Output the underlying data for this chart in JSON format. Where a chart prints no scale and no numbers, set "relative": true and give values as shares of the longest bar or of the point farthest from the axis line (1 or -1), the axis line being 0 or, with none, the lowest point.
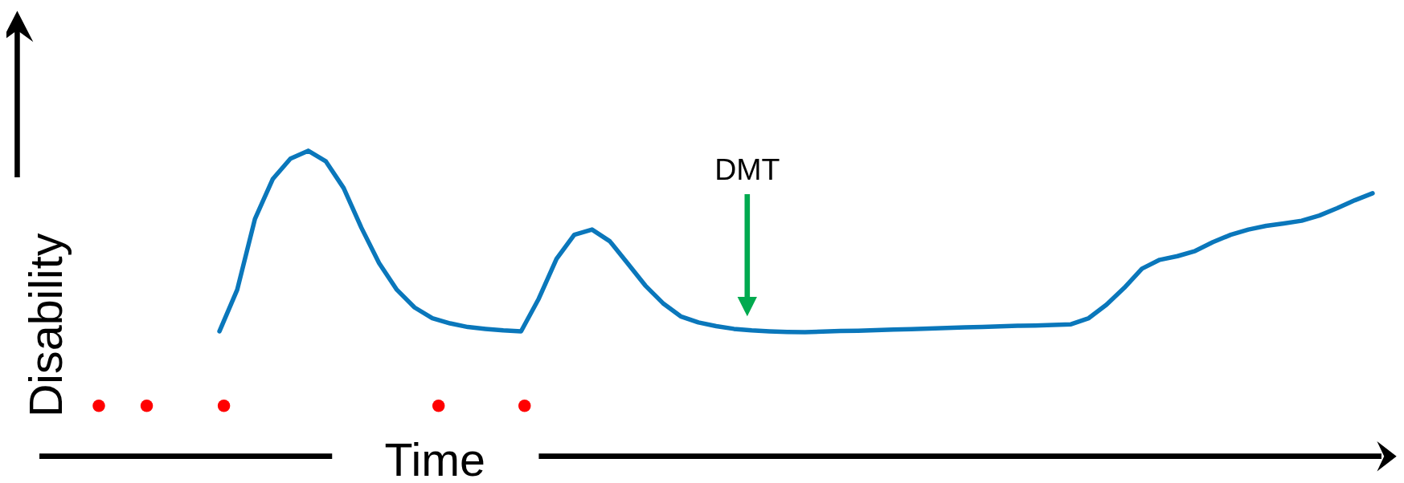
{
  "chart_data": {
    "type": "line",
    "relative": true,
    "xlabel": "Time",
    "ylabel": "Disability",
    "annotations": [
      "DMT"
    ],
    "categories": [
      null,
      null,
      null,
      null,
      null,
      null,
      null,
      null,
      null,
      null,
      null,
      null,
      null,
      null,
      null,
      null,
      null,
      null,
      null,
      null,
      null,
      null,
      null,
      null,
      null,
      null,
      null,
      null,
      null,
      null,
      null,
      null,
      null,
      null,
      null,
      null,
      null,
      null,
      null,
      null,
      null,
      null,
      null,
      null,
      null,
      null,
      null,
      null,
      null,
      null,
      null,
      null,
      null,
      null,
      null,
      null,
      null,
      null,
      null,
      null,
      null,
      null,
      null,
      null,
      null,
      null,
      null,
      null,
      null,
      null,
      null,
      null,
      null,
      null
    ],
    "series": [
      {
        "color": "#0a77bb",
        "values": [
          null,
          null,
          null,
          null,
          null,
          null,
          null,
          0.409,
          0.545,
          0.777,
          0.907,
          0.974,
          1,
          0.965,
          0.878,
          0.748,
          0.632,
          0.545,
          0.487,
          0.452,
          0.435,
          0.423,
          0.417,
          0.412,
          0.409,
          0.516,
          0.646,
          0.725,
          0.742,
          0.704,
          0.632,
          0.559,
          0.501,
          0.458,
          0.438,
          0.426,
          0.417,
          0.412,
          0.409,
          0.407,
          0.406,
          0.408,
          0.41,
          0.411,
          0.413,
          0.415,
          0.416,
          0.418,
          0.42,
          0.422,
          0.423,
          0.425,
          0.427,
          0.428,
          0.43,
          0.432,
          0.452,
          0.496,
          0.551,
          0.614,
          0.643,
          0.655,
          0.672,
          0.701,
          0.725,
          0.742,
          0.754,
          0.762,
          0.771,
          0.788,
          0.812,
          0.838,
          0.861,
          null
        ]
      }
    ]
  }
}
